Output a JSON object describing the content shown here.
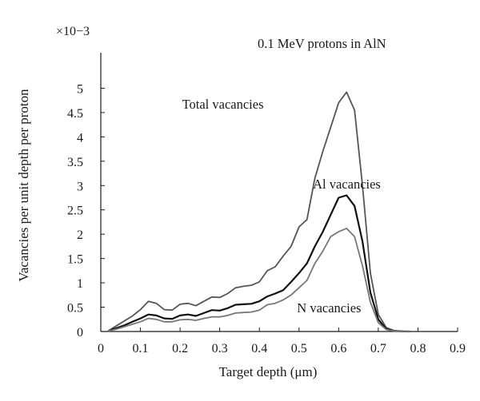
{
  "chart_data": {
    "type": "line",
    "title": "0.1 MeV protons in AlN",
    "xlabel": "Target depth (μm)",
    "ylabel": "Vacancies per unit depth per proton",
    "y_multiplier_label": "×10−3",
    "xlim": [
      0,
      0.9
    ],
    "ylim": [
      0,
      5.5
    ],
    "x_ticks": [
      "0",
      "0.1",
      "0.2",
      "0.3",
      "0.4",
      "0.5",
      "0.6",
      "0.7",
      "0.8",
      "0.9"
    ],
    "y_ticks": [
      "0",
      "0.5",
      "1",
      "1.5",
      "2",
      "2.5",
      "3",
      "3.5",
      "4",
      "4.5",
      "5"
    ],
    "grid": false,
    "legend": "none",
    "series": [
      {
        "name": "Total vacancies",
        "color": "#555555",
        "x": [
          0.02,
          0.04,
          0.06,
          0.08,
          0.1,
          0.12,
          0.14,
          0.16,
          0.18,
          0.2,
          0.22,
          0.24,
          0.26,
          0.28,
          0.3,
          0.32,
          0.34,
          0.36,
          0.38,
          0.4,
          0.42,
          0.44,
          0.46,
          0.48,
          0.5,
          0.52,
          0.54,
          0.56,
          0.58,
          0.6,
          0.62,
          0.64,
          0.66,
          0.68,
          0.7,
          0.72,
          0.74,
          0.76,
          0.78
        ],
        "values": [
          0.02,
          0.12,
          0.22,
          0.32,
          0.45,
          0.62,
          0.58,
          0.45,
          0.44,
          0.56,
          0.58,
          0.53,
          0.62,
          0.71,
          0.7,
          0.78,
          0.9,
          0.93,
          0.95,
          1.02,
          1.25,
          1.33,
          1.55,
          1.75,
          2.15,
          2.3,
          3.15,
          3.7,
          4.2,
          4.7,
          4.92,
          4.55,
          3.0,
          1.2,
          0.35,
          0.08,
          0.02,
          0.005,
          0.0
        ]
      },
      {
        "name": "Al vacancies",
        "color": "#111111",
        "x": [
          0.02,
          0.04,
          0.06,
          0.08,
          0.1,
          0.12,
          0.14,
          0.16,
          0.18,
          0.2,
          0.22,
          0.24,
          0.26,
          0.28,
          0.3,
          0.32,
          0.34,
          0.36,
          0.38,
          0.4,
          0.42,
          0.44,
          0.46,
          0.48,
          0.5,
          0.52,
          0.54,
          0.56,
          0.58,
          0.6,
          0.62,
          0.64,
          0.66,
          0.68,
          0.7,
          0.72,
          0.74,
          0.76,
          0.78
        ],
        "values": [
          0.01,
          0.07,
          0.13,
          0.2,
          0.27,
          0.35,
          0.33,
          0.27,
          0.26,
          0.33,
          0.35,
          0.32,
          0.38,
          0.44,
          0.43,
          0.48,
          0.55,
          0.56,
          0.57,
          0.62,
          0.72,
          0.78,
          0.85,
          1.02,
          1.2,
          1.4,
          1.75,
          2.05,
          2.4,
          2.75,
          2.8,
          2.58,
          1.85,
          0.8,
          0.25,
          0.05,
          0.01,
          0.003,
          0.0
        ]
      },
      {
        "name": "N vacancies",
        "color": "#777777",
        "x": [
          0.02,
          0.04,
          0.06,
          0.08,
          0.1,
          0.12,
          0.14,
          0.16,
          0.18,
          0.2,
          0.22,
          0.24,
          0.26,
          0.28,
          0.3,
          0.32,
          0.34,
          0.36,
          0.38,
          0.4,
          0.42,
          0.44,
          0.46,
          0.48,
          0.5,
          0.52,
          0.54,
          0.56,
          0.58,
          0.6,
          0.62,
          0.64,
          0.66,
          0.68,
          0.7,
          0.72,
          0.74,
          0.76,
          0.78
        ],
        "values": [
          0.01,
          0.05,
          0.1,
          0.15,
          0.2,
          0.27,
          0.25,
          0.2,
          0.2,
          0.24,
          0.25,
          0.23,
          0.27,
          0.3,
          0.3,
          0.33,
          0.38,
          0.39,
          0.4,
          0.44,
          0.55,
          0.58,
          0.65,
          0.75,
          0.9,
          1.05,
          1.4,
          1.65,
          1.95,
          2.05,
          2.12,
          1.95,
          1.35,
          0.6,
          0.18,
          0.04,
          0.01,
          0.002,
          0.0
        ]
      }
    ],
    "annotations": [
      {
        "text": "Total vacancies",
        "x": 0.205,
        "y": 4.58
      },
      {
        "text": "Al vacancies",
        "x": 0.535,
        "y": 2.94
      },
      {
        "text": "N vacancies",
        "x": 0.495,
        "y": 0.39
      }
    ]
  }
}
